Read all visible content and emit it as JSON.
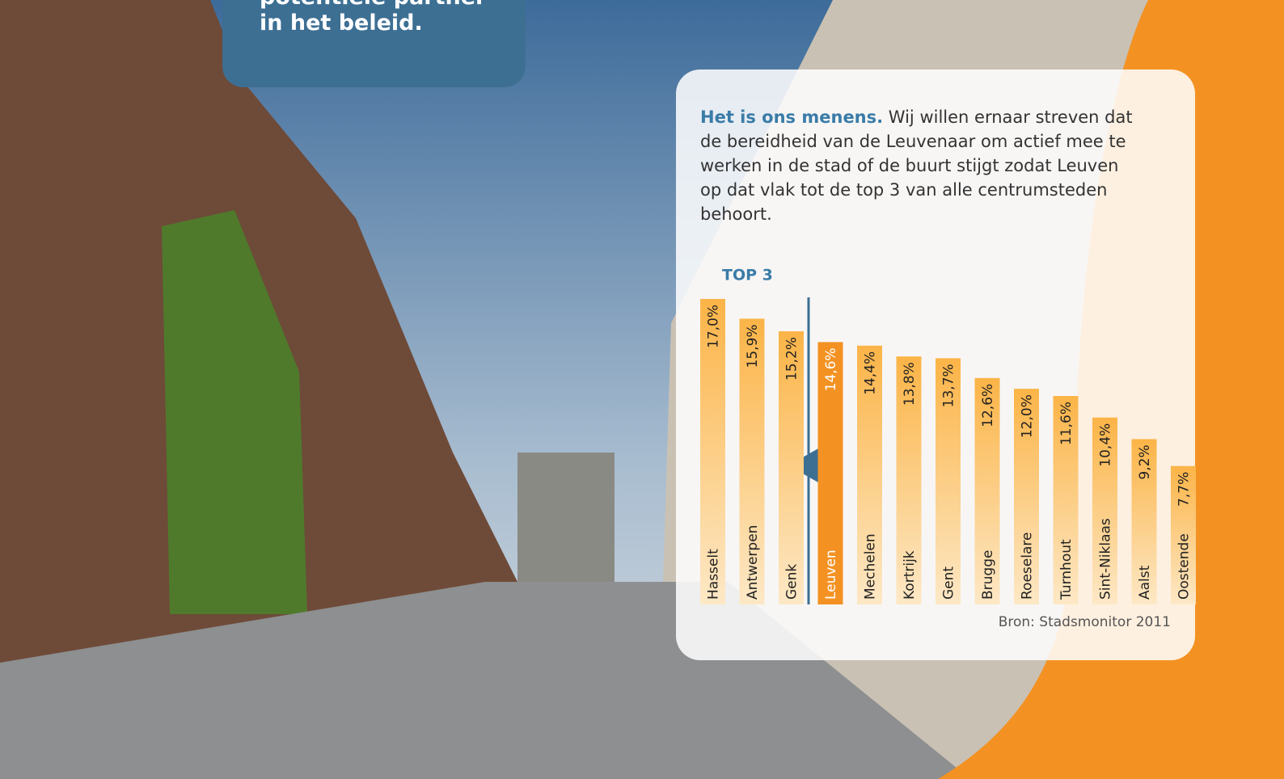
{
  "callout": {
    "lines": [
      "potentiële partner",
      "in het beleid."
    ]
  },
  "intro": {
    "lead": "Het is ons menens.",
    "text": "Wij willen ernaar streven dat de bereidheid van de Leuvenaar om actief mee te werken in de stad of de buurt stijgt zodat Leuven op dat vlak tot de top 3 van alle centrumsteden behoort."
  },
  "chart_data": {
    "type": "bar",
    "annotation": "TOP 3",
    "source": "Bron: Stadsmonitor 2011",
    "categories": [
      "Hasselt",
      "Antwerpen",
      "Genk",
      "Leuven",
      "Mechelen",
      "Kortrijk",
      "Gent",
      "Brugge",
      "Roeselare",
      "Turnhout",
      "Sint-Niklaas",
      "Aalst",
      "Oostende"
    ],
    "values": [
      17.0,
      15.9,
      15.2,
      14.6,
      14.4,
      13.8,
      13.7,
      12.6,
      12.0,
      11.6,
      10.4,
      9.2,
      7.7
    ],
    "value_labels": [
      "17,0%",
      "15,9%",
      "15,2%",
      "14,6%",
      "14,4%",
      "13,8%",
      "13,7%",
      "12,6%",
      "12,0%",
      "11,6%",
      "10,4%",
      "9,2%",
      "7,7%"
    ],
    "colors": [
      "#fbb447",
      "#fbb447",
      "#fbb447",
      "#f39223",
      "#fbb447",
      "#fbb447",
      "#fbb447",
      "#fbb447",
      "#fbb447",
      "#fbb447",
      "#fbb447",
      "#fbb447",
      "#fbb447"
    ]
  }
}
